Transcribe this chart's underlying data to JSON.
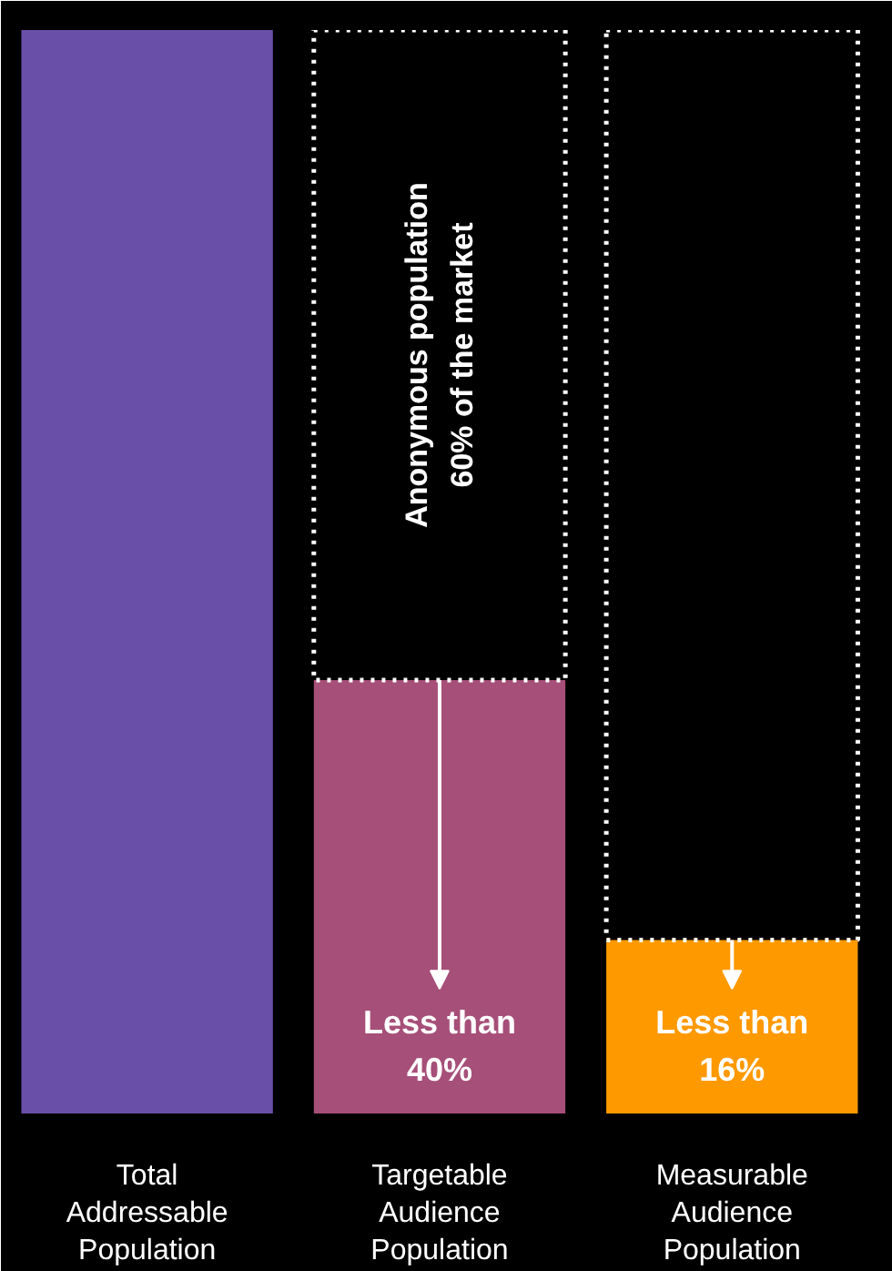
{
  "chart_data": {
    "type": "bar",
    "stacked": true,
    "categories": [
      "Total Addressable Population",
      "Targetable Audience Population",
      "Measurable Audience Population"
    ],
    "series": [
      {
        "colors": [
          "#6a4fa8",
          "#a64f78",
          "#ff9900"
        ],
        "values": [
          100,
          40,
          16
        ],
        "value_labels": [
          null,
          "Less than\n40%",
          "Less than\n16%"
        ]
      },
      {
        "color": "#ffffff",
        "line_style": "dotted",
        "values": [
          null,
          60,
          84
        ]
      }
    ],
    "annotations": [
      "Anonymous population\n60% of the market"
    ]
  }
}
